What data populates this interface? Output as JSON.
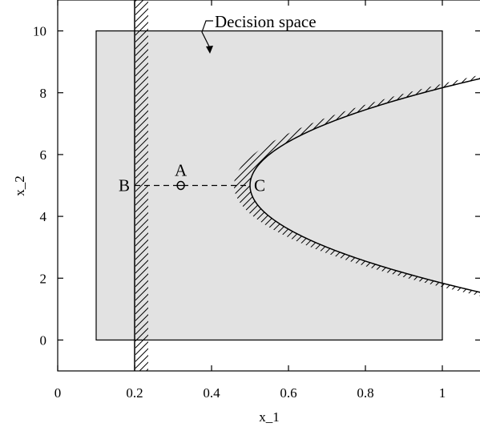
{
  "chart_data": {
    "type": "line",
    "xlabel": "x_1",
    "ylabel": "x_2",
    "xlim": [
      0,
      1.1
    ],
    "ylim": [
      -1,
      11
    ],
    "grid": false,
    "x_ticks": [
      {
        "value": 0,
        "label": "0"
      },
      {
        "value": 0.2,
        "label": "0.2"
      },
      {
        "value": 0.4,
        "label": "0.4"
      },
      {
        "value": 0.6,
        "label": "0.6"
      },
      {
        "value": 0.8,
        "label": "0.8"
      },
      {
        "value": 1,
        "label": "1"
      }
    ],
    "y_ticks": [
      {
        "value": 0,
        "label": "0"
      },
      {
        "value": 2,
        "label": "2"
      },
      {
        "value": 4,
        "label": "4"
      },
      {
        "value": 6,
        "label": "6"
      },
      {
        "value": 8,
        "label": "8"
      },
      {
        "value": 10,
        "label": "10"
      }
    ],
    "decision_space": {
      "label": "Decision space",
      "x": [
        0.1,
        1
      ],
      "y": [
        0,
        10
      ],
      "fill": "#e2e2e2"
    },
    "constraint_line": {
      "x": 0.2
    },
    "constraint_parabola": {
      "vertex": [
        0.5,
        5
      ],
      "points": [
        [
          1.1,
          8.46
        ],
        [
          1.0,
          8.16
        ],
        [
          0.9,
          7.83
        ],
        [
          0.8,
          7.45
        ],
        [
          0.7,
          7.0
        ],
        [
          0.6,
          6.41
        ],
        [
          0.55,
          6.0
        ],
        [
          0.5,
          5.0
        ],
        [
          0.55,
          4.0
        ],
        [
          0.6,
          3.59
        ],
        [
          0.7,
          3.0
        ],
        [
          0.8,
          2.55
        ],
        [
          0.9,
          2.17
        ],
        [
          1.0,
          1.84
        ],
        [
          1.1,
          1.54
        ]
      ]
    },
    "points": [
      {
        "label": "A",
        "x": 0.32,
        "y": 5
      },
      {
        "label": "B",
        "x": 0.2,
        "y": 5
      },
      {
        "label": "C",
        "x": 0.5,
        "y": 5
      }
    ],
    "dashed_segment": {
      "from": [
        0.2,
        5
      ],
      "to": [
        0.5,
        5
      ]
    }
  }
}
